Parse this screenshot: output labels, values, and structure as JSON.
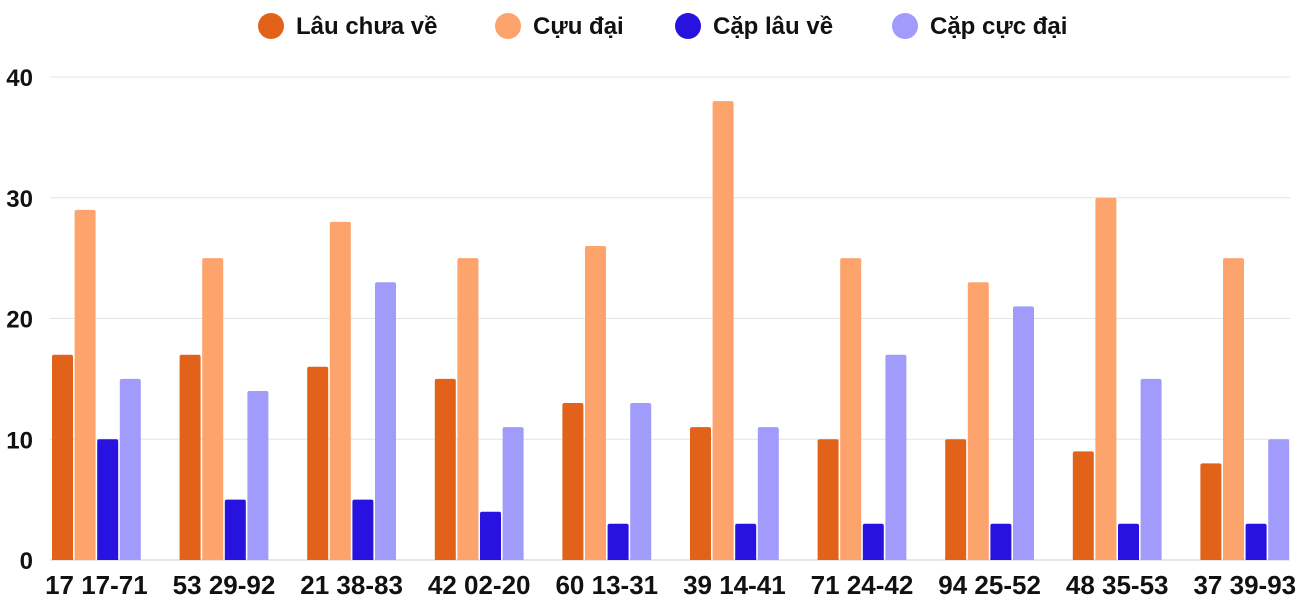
{
  "chart_data": {
    "type": "bar",
    "title": "",
    "xlabel": "",
    "ylabel": "",
    "ylim": [
      0,
      40
    ],
    "yticks": [
      "0",
      "10",
      "20",
      "30",
      "40"
    ],
    "grid": true,
    "legend_position": "top-center",
    "categories": [
      "17 17-71",
      "53 29-92",
      "21 38-83",
      "42 02-20",
      "60 13-31",
      "39 14-41",
      "71 24-42",
      "94 25-52",
      "48 35-53",
      "37 39-93"
    ],
    "series": [
      {
        "name": "Lâu chưa về",
        "color": "#e2621a",
        "values": [
          17,
          17,
          16,
          15,
          13,
          11,
          10,
          10,
          9,
          8
        ]
      },
      {
        "name": "Cựu đại",
        "color": "#fda46c",
        "values": [
          29,
          25,
          28,
          25,
          26,
          38,
          25,
          23,
          30,
          25
        ]
      },
      {
        "name": "Cặp lâu về",
        "color": "#2712df",
        "values": [
          10,
          5,
          5,
          4,
          3,
          3,
          3,
          3,
          3,
          3
        ]
      },
      {
        "name": "Cặp cực đại",
        "color": "#a19cfc",
        "values": [
          15,
          14,
          23,
          11,
          13,
          11,
          17,
          21,
          15,
          10
        ]
      }
    ]
  }
}
